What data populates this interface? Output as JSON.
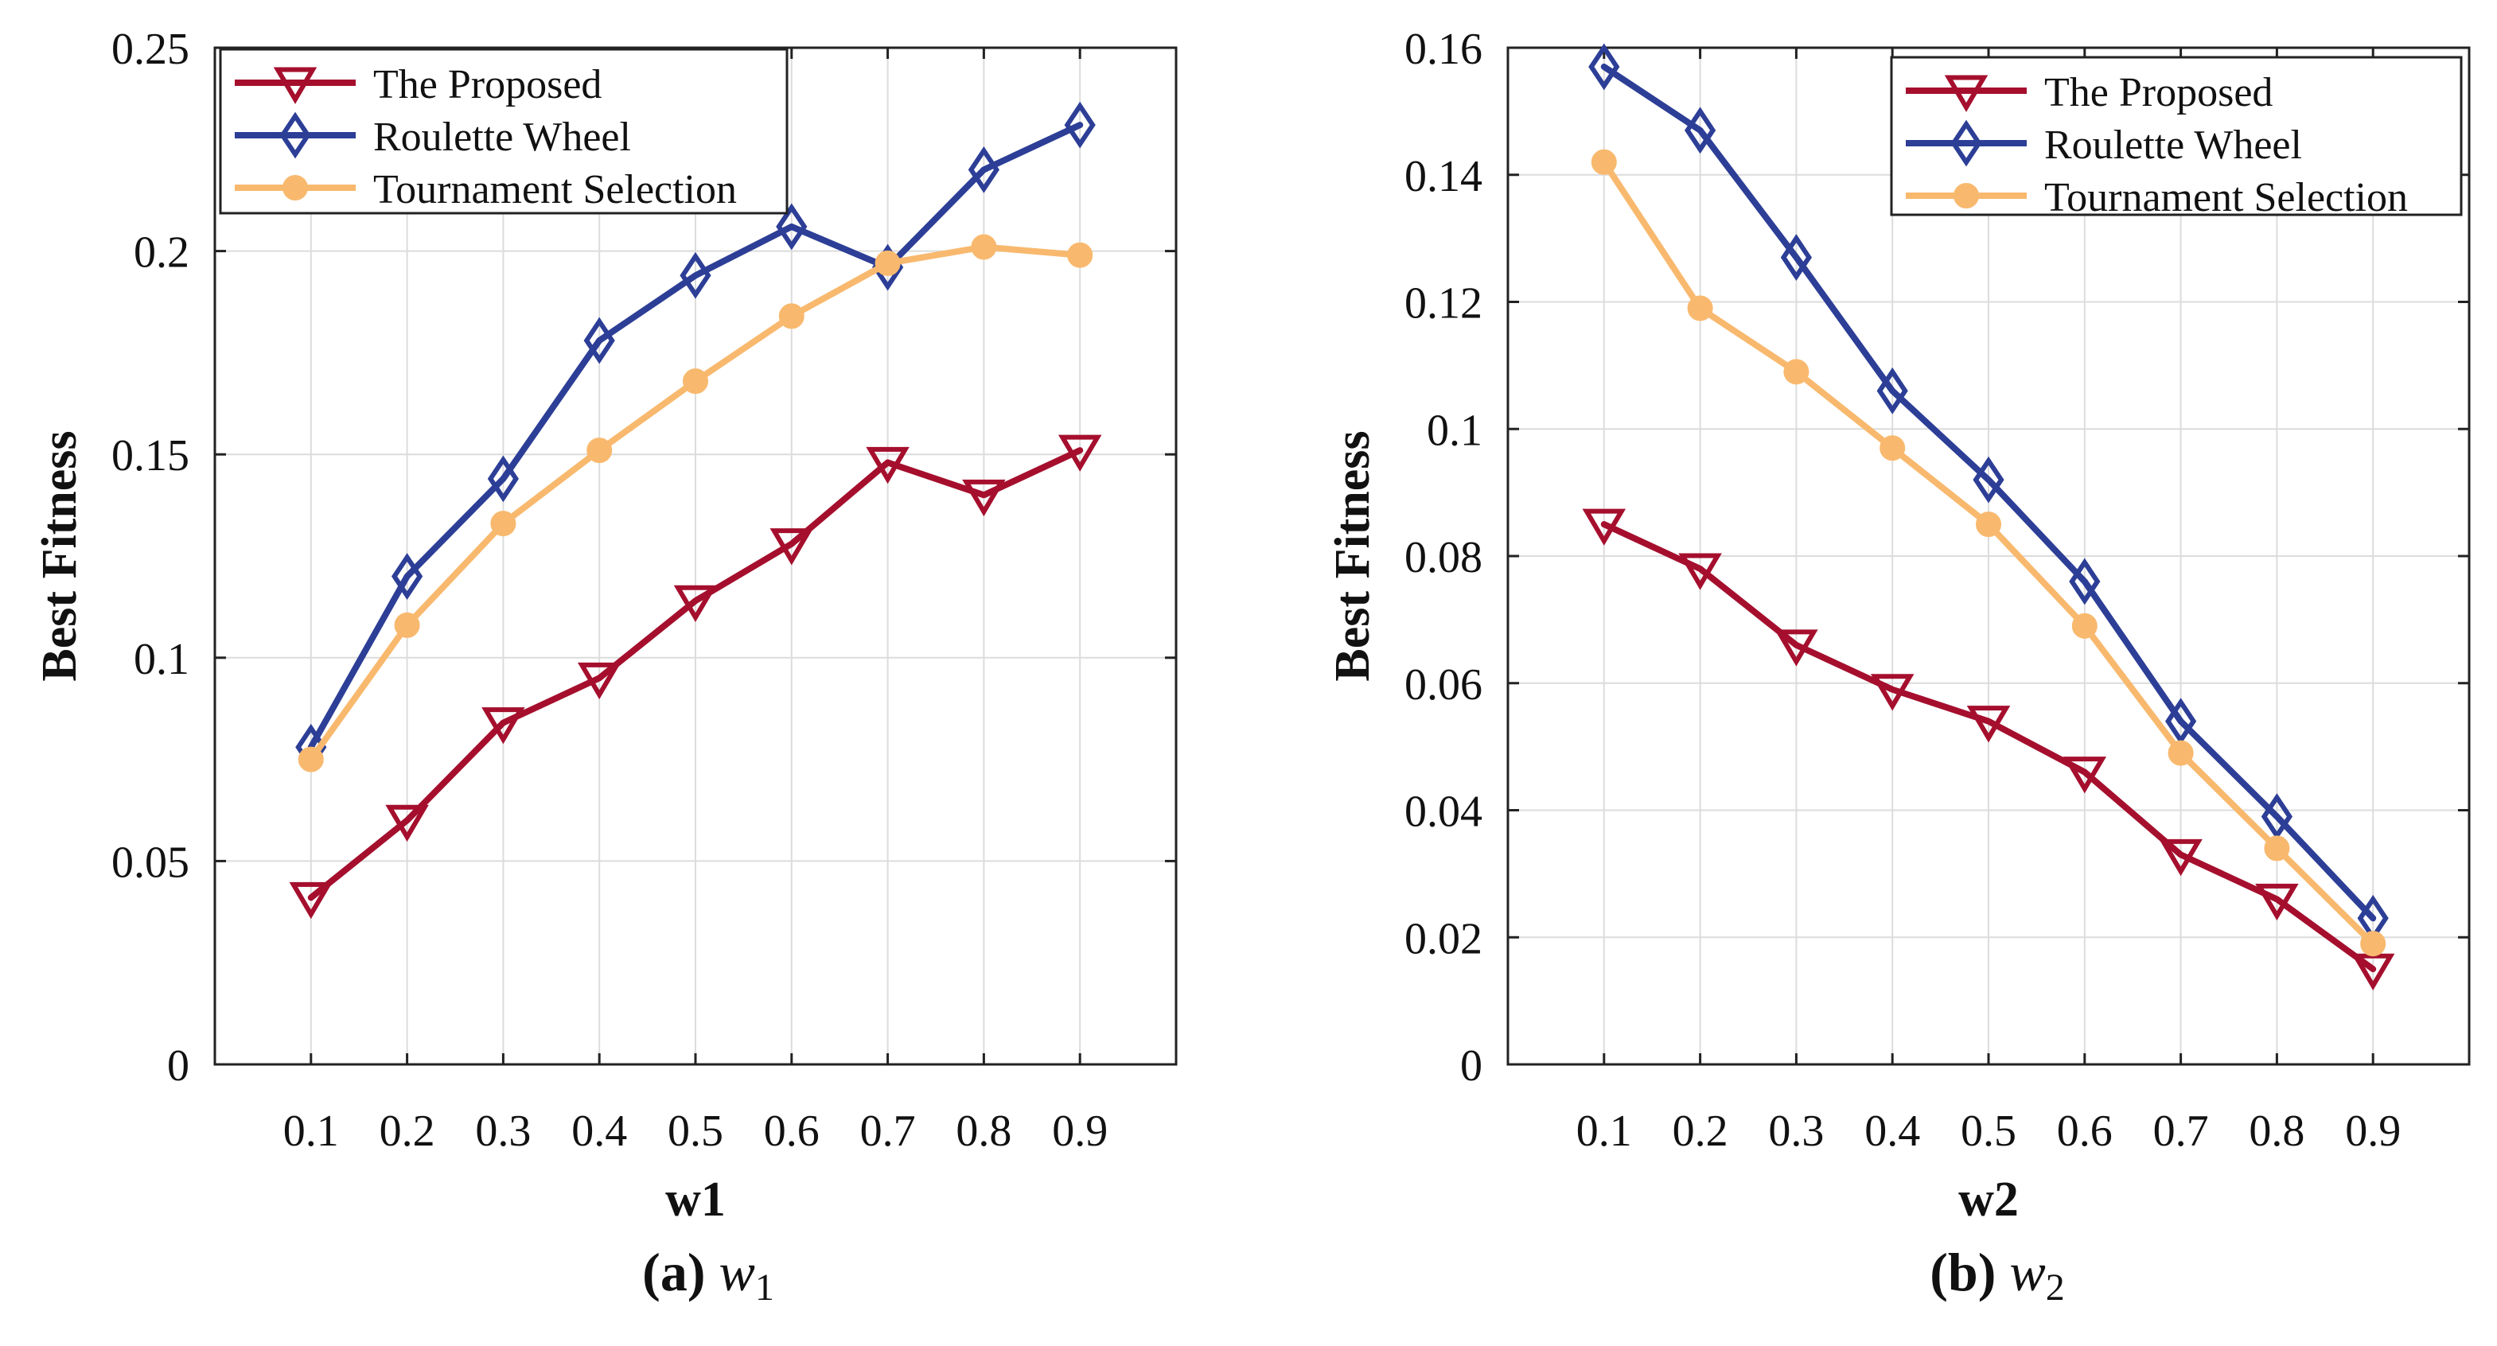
{
  "figure": {
    "captions": [
      {
        "label": "(a)",
        "var": "w",
        "sub": "1"
      },
      {
        "label": "(b)",
        "var": "w",
        "sub": "2"
      }
    ]
  },
  "colors": {
    "proposed": "#A50F2D",
    "roulette": "#2C3E96",
    "tournament": "#F8B96E"
  },
  "chart_data": [
    {
      "type": "line",
      "title": "",
      "xlabel": "w1",
      "ylabel": "Best Fitness",
      "x": [
        0.1,
        0.2,
        0.3,
        0.4,
        0.5,
        0.6,
        0.7,
        0.8,
        0.9
      ],
      "xlim": [
        0,
        1
      ],
      "ylim": [
        0,
        0.25
      ],
      "xticks": [
        "0.1",
        "0.2",
        "0.3",
        "0.4",
        "0.5",
        "0.6",
        "0.7",
        "0.8",
        "0.9"
      ],
      "yticks": [
        0,
        0.05,
        0.1,
        0.15,
        0.2,
        0.25
      ],
      "ytick_labels": [
        "0",
        "0.05",
        "0.1",
        "0.15",
        "0.2",
        "0.25"
      ],
      "grid": true,
      "legend_position": "top-left",
      "series": [
        {
          "name": "The Proposed",
          "key": "proposed",
          "marker": "triangle-down",
          "values": [
            0.041,
            0.06,
            0.084,
            0.095,
            0.114,
            0.128,
            0.148,
            0.14,
            0.151
          ]
        },
        {
          "name": "Roulette Wheel",
          "key": "roulette",
          "marker": "diamond",
          "values": [
            0.078,
            0.12,
            0.144,
            0.178,
            0.194,
            0.206,
            0.196,
            0.22,
            0.231
          ]
        },
        {
          "name": "Tournament Selection",
          "key": "tournament",
          "marker": "circle",
          "values": [
            0.075,
            0.108,
            0.133,
            0.151,
            0.168,
            0.184,
            0.197,
            0.201,
            0.199
          ]
        }
      ]
    },
    {
      "type": "line",
      "title": "",
      "xlabel": "w2",
      "ylabel": "Best Fitness",
      "x": [
        0.1,
        0.2,
        0.3,
        0.4,
        0.5,
        0.6,
        0.7,
        0.8,
        0.9
      ],
      "xlim": [
        0,
        1
      ],
      "ylim": [
        0,
        0.16
      ],
      "xticks": [
        "0.1",
        "0.2",
        "0.3",
        "0.4",
        "0.5",
        "0.6",
        "0.7",
        "0.8",
        "0.9"
      ],
      "yticks": [
        0,
        0.02,
        0.04,
        0.06,
        0.08,
        0.1,
        0.12,
        0.14,
        0.16
      ],
      "ytick_labels": [
        "0",
        "0.02",
        "0.04",
        "0.06",
        "0.08",
        "0.1",
        "0.12",
        "0.14",
        "0.16"
      ],
      "grid": true,
      "legend_position": "top-right",
      "series": [
        {
          "name": "The Proposed",
          "key": "proposed",
          "marker": "triangle-down",
          "values": [
            0.085,
            0.078,
            0.066,
            0.059,
            0.054,
            0.046,
            0.033,
            0.026,
            0.015
          ]
        },
        {
          "name": "Roulette Wheel",
          "key": "roulette",
          "marker": "diamond",
          "values": [
            0.157,
            0.147,
            0.127,
            0.106,
            0.092,
            0.076,
            0.054,
            0.039,
            0.023
          ]
        },
        {
          "name": "Tournament Selection",
          "key": "tournament",
          "marker": "circle",
          "values": [
            0.142,
            0.119,
            0.109,
            0.097,
            0.085,
            0.069,
            0.049,
            0.034,
            0.019
          ]
        }
      ]
    }
  ]
}
